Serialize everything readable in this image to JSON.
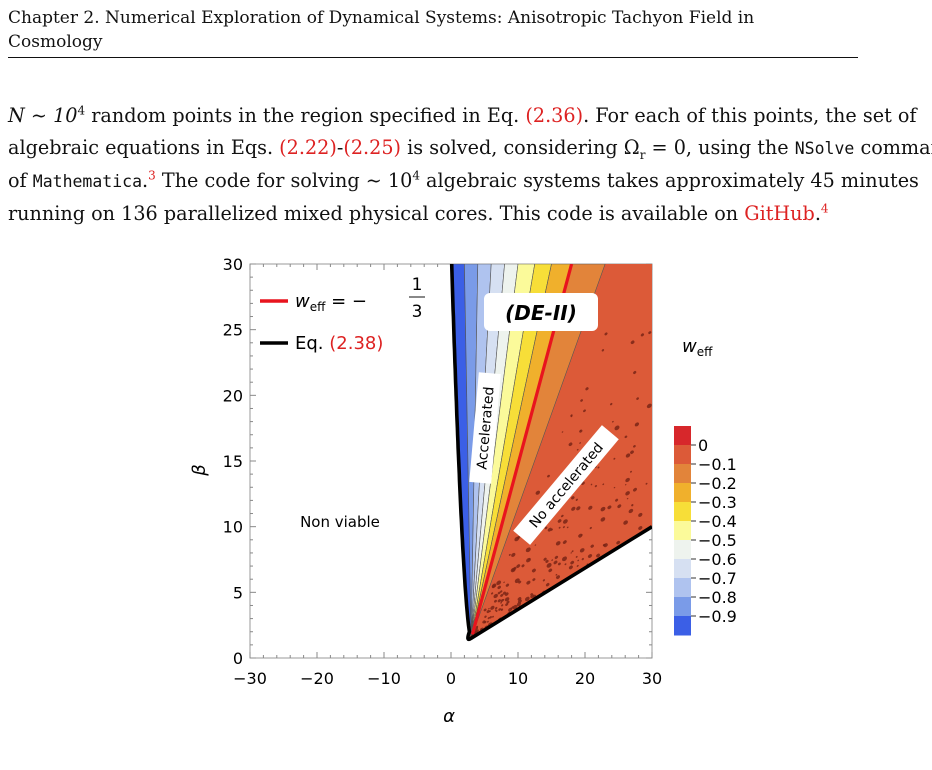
{
  "header": {
    "line1": "Chapter 2.  Numerical Exploration of Dynamical Systems: Anisotropic Tachyon Field in",
    "line2": "Cosmology"
  },
  "paragraph": {
    "l1_a": "N ∼ 10",
    "l1_sup": "4",
    "l1_b": " random points in the region specified in Eq. ",
    "l1_ref": "(2.36)",
    "l1_c": ". For each of this points, the set of",
    "l2_a": "algebraic equations in Eqs. ",
    "l2_ref1": "(2.22)",
    "l2_dash": "-",
    "l2_ref2": "(2.25)",
    "l2_b": " is solved, considering Ω",
    "l2_sub": "r",
    "l2_c": " = 0, using the ",
    "l2_code": "NSolve",
    "l2_d": " command",
    "l3_a": "of ",
    "l3_code": "Mathematica",
    "l3_b": ".",
    "l3_sup": "3",
    "l3_c": " The code for solving ∼ 10",
    "l3_sup2": "4",
    "l3_d": " algebraic systems takes approximately 45 minutes",
    "l4_a": "running on 136 parallelized mixed physical cores. This code is available on ",
    "l4_link": "GitHub",
    "l4_b": ".",
    "l4_sup": "4"
  },
  "figure": {
    "legend_red_label": "w",
    "legend_red_sub": "eff",
    "legend_red_eq": " = −",
    "legend_frac_num": "1",
    "legend_frac_den": "3",
    "legend_black_label": "Eq. ",
    "legend_black_ref": "(2.38)",
    "region_label": "(DE-II)",
    "label_accelerated": "Accelerated",
    "label_no_accelerated": "No accelerated",
    "label_non_viable": "Non viable",
    "colorbar_title": "w",
    "colorbar_title_sub": "eff",
    "colors": {
      "red_line": "#e8141e",
      "boundary": "#000000",
      "region": "#dc5a38"
    }
  },
  "chart_data": {
    "type": "contour",
    "xlabel": "α",
    "ylabel": "β",
    "xlim": [
      -30,
      30
    ],
    "ylim": [
      0,
      30
    ],
    "xticks": [
      "−30",
      "−20",
      "−10",
      "0",
      "10",
      "20",
      "30"
    ],
    "yticks": [
      "0",
      "5",
      "10",
      "15",
      "20",
      "25",
      "30"
    ],
    "colorbar": {
      "label": "w_eff",
      "ticks": [
        "0",
        "−0.1",
        "−0.2",
        "−0.3",
        "−0.4",
        "−0.5",
        "−0.6",
        "−0.7",
        "−0.8",
        "−0.9"
      ],
      "levels": [
        {
          "value": 0.05,
          "color": "#d7272b"
        },
        {
          "value": -0.05,
          "color": "#dc5a38"
        },
        {
          "value": -0.15,
          "color": "#e2843a"
        },
        {
          "value": -0.25,
          "color": "#f0b02c"
        },
        {
          "value": -0.35,
          "color": "#f7de38"
        },
        {
          "value": -0.45,
          "color": "#fbfa9a"
        },
        {
          "value": -0.55,
          "color": "#eef3ee"
        },
        {
          "value": -0.65,
          "color": "#d6e0f2"
        },
        {
          "value": -0.75,
          "color": "#afc3ef"
        },
        {
          "value": -0.85,
          "color": "#7a9be8"
        },
        {
          "value": -0.95,
          "color": "#3b5fe6"
        }
      ]
    },
    "series": [
      {
        "name": "w_eff = −1/3",
        "style": "red"
      },
      {
        "name": "Eq. (2.38)",
        "style": "black"
      }
    ]
  }
}
